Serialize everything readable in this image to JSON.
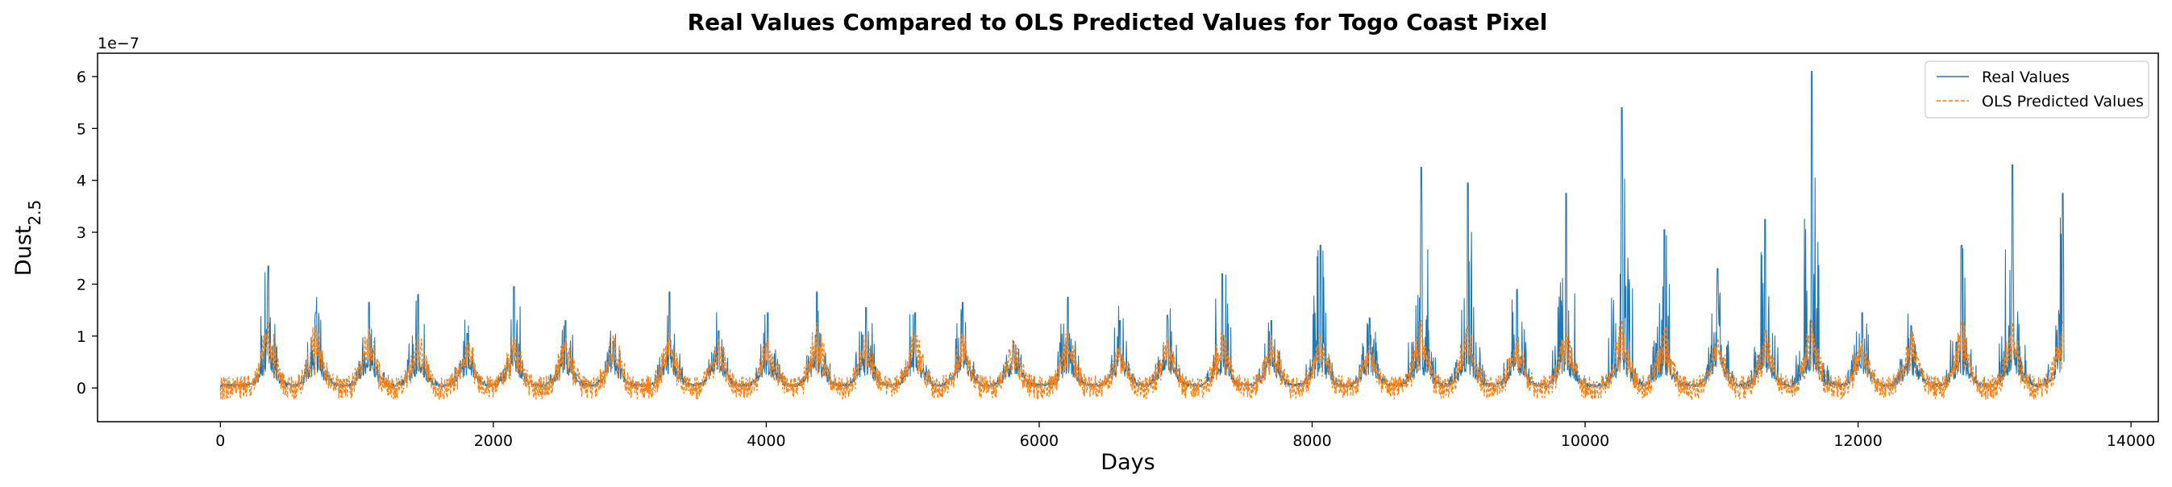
{
  "chart_data": {
    "type": "line",
    "title": "Real Values Compared to OLS Predicted Values for Togo Coast Pixel",
    "xlabel": "Days",
    "ylabel": "Dust",
    "ylabel_subscript": "2.5",
    "y_offset_label": "1e−7",
    "xlim": [
      -900,
      14200
    ],
    "ylim": [
      -0.65,
      6.45
    ],
    "x_ticks": [
      0,
      2000,
      4000,
      6000,
      8000,
      10000,
      12000,
      14000
    ],
    "x_tick_labels": [
      "0",
      "2000",
      "4000",
      "6000",
      "8000",
      "10000",
      "12000",
      "14000"
    ],
    "y_ticks": [
      0,
      1,
      2,
      3,
      4,
      5,
      6
    ],
    "y_tick_labels": [
      "0",
      "1",
      "2",
      "3",
      "4",
      "5",
      "6"
    ],
    "grid": false,
    "legend_position": "top-right",
    "period_days": 365.25,
    "season_peak_days": [
      350,
      700,
      1090,
      1450,
      1810,
      2150,
      2530,
      2880,
      3290,
      3650,
      4010,
      4370,
      4730,
      5090,
      5440,
      5810,
      6210,
      6590,
      6940,
      7340,
      7700,
      8060,
      8420,
      8800,
      9140,
      9500,
      9860,
      10270,
      10580,
      10970,
      11320,
      11660,
      12030,
      12390,
      12760,
      13130,
      13500
    ],
    "series": [
      {
        "name": "Real Values",
        "color": "#1f77b4",
        "style": "solid",
        "x_range": [
          0,
          13510
        ],
        "seasonal_peak_values": [
          2.35,
          1.45,
          1.65,
          1.8,
          1.05,
          1.95,
          1.3,
          0.9,
          1.85,
          1.1,
          1.45,
          1.85,
          1.55,
          1.45,
          1.65,
          0.9,
          1.75,
          1.3,
          1.4,
          2.2,
          1.3,
          2.75,
          1.35,
          4.25,
          3.95,
          1.9,
          3.75,
          5.4,
          3.05,
          2.3,
          3.25,
          6.1,
          1.45,
          1.2,
          2.75,
          4.3,
          3.75
        ],
        "baseline_min": -0.05
      },
      {
        "name": "OLS Predicted Values",
        "color": "#ff7f0e",
        "style": "dashed",
        "x_range": [
          0,
          13510
        ],
        "seasonal_peak_values": [
          1.25,
          1.2,
          1.15,
          1.0,
          0.9,
          1.0,
          0.95,
          1.0,
          1.05,
          0.95,
          0.95,
          1.25,
          1.0,
          1.05,
          1.0,
          0.85,
          1.05,
          0.8,
          0.95,
          1.05,
          1.0,
          1.05,
          0.85,
          1.3,
          1.2,
          0.95,
          1.05,
          1.3,
          1.15,
          0.95,
          1.1,
          1.3,
          0.95,
          1.0,
          1.3,
          1.25,
          1.25
        ],
        "baseline_min": -0.3
      }
    ]
  }
}
